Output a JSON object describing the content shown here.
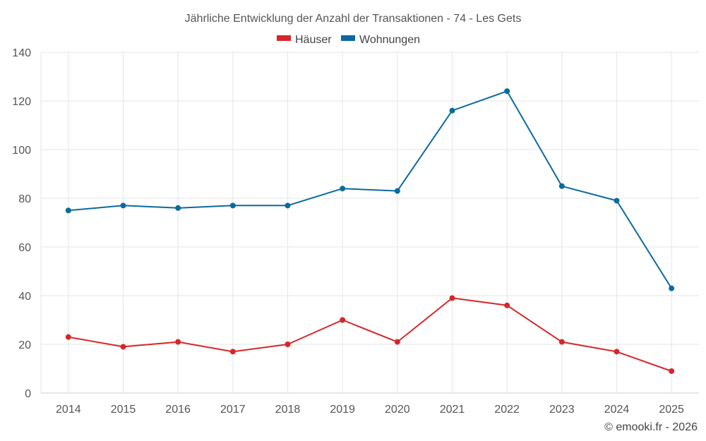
{
  "chart_data": {
    "type": "line",
    "title": "Jährliche Entwicklung der Anzahl der Transaktionen - 74 - Les Gets",
    "categories": [
      "2014",
      "2015",
      "2016",
      "2017",
      "2018",
      "2019",
      "2020",
      "2021",
      "2022",
      "2023",
      "2024",
      "2025"
    ],
    "series": [
      {
        "name": "Häuser",
        "color": "#d62728",
        "values": [
          23,
          19,
          21,
          17,
          20,
          30,
          21,
          39,
          36,
          21,
          17,
          9
        ]
      },
      {
        "name": "Wohnungen",
        "color": "#0a6aa1",
        "values": [
          75,
          77,
          76,
          77,
          77,
          84,
          83,
          116,
          124,
          85,
          79,
          43
        ]
      }
    ],
    "ylim": [
      0,
      140
    ],
    "yticks": [
      0,
      20,
      40,
      60,
      80,
      100,
      120,
      140
    ],
    "grid": true,
    "legend": "top-center",
    "xlabel": "",
    "ylabel": ""
  },
  "credit": "© emooki.fr - 2026"
}
